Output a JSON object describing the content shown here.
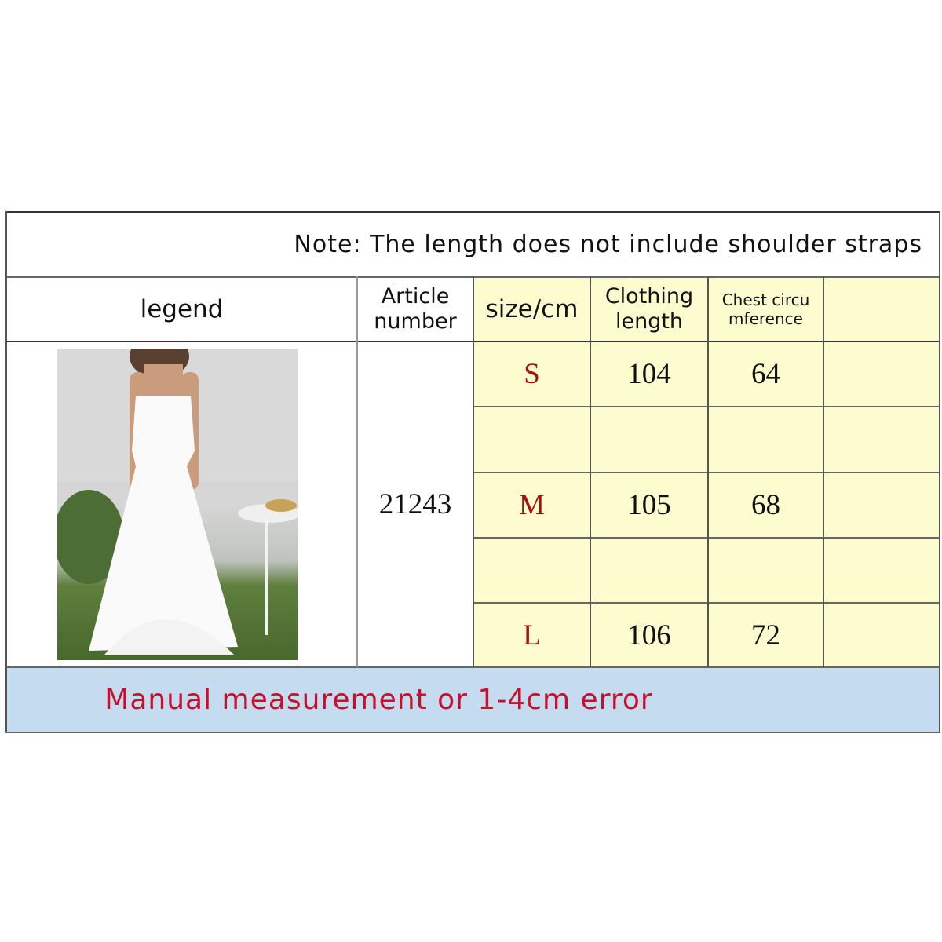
{
  "note": "Note: The length does not include shoulder straps",
  "headers": {
    "legend": "legend",
    "article_number": "Article number",
    "size": "size/cm",
    "clothing_length": "Clothing length",
    "chest": "Chest circu mference",
    "extra": ""
  },
  "article_number": "21243",
  "rows": [
    {
      "size": "S",
      "length": "104",
      "chest": "64"
    },
    {
      "size": "",
      "length": "",
      "chest": ""
    },
    {
      "size": "M",
      "length": "105",
      "chest": "68"
    },
    {
      "size": "",
      "length": "",
      "chest": ""
    },
    {
      "size": "L",
      "length": "106",
      "chest": "72"
    }
  ],
  "footer": "Manual measurement or 1-4cm error",
  "colors": {
    "yellow_cells": "#fdfccf",
    "footer_bg": "#c5dbef",
    "footer_text": "#c8102e",
    "size_text": "#a51010"
  }
}
